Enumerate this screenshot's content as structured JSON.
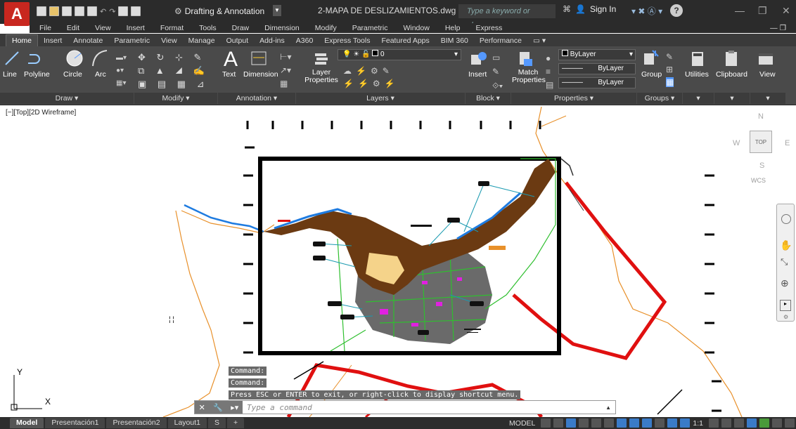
{
  "app": {
    "logo": "A",
    "workspace": "Drafting & Annotation",
    "document_title": "2-MAPA DE DESLIZAMIENTOS.dwg"
  },
  "search": {
    "placeholder": "Type a keyword or phrase"
  },
  "account": {
    "sign_in": "Sign In"
  },
  "help_icon": "?",
  "menu": [
    "File",
    "Edit",
    "View",
    "Insert",
    "Format",
    "Tools",
    "Draw",
    "Dimension",
    "Modify",
    "Parametric",
    "Window",
    "Help",
    "Express"
  ],
  "ribbon_tabs": [
    "Home",
    "Insert",
    "Annotate",
    "Parametric",
    "View",
    "Manage",
    "Output",
    "Add-ins",
    "A360",
    "Express Tools",
    "Featured Apps",
    "BIM 360",
    "Performance"
  ],
  "active_tab": "Home",
  "panels": {
    "draw": {
      "title": "Draw ▾",
      "tools": [
        "Line",
        "Polyline",
        "Circle",
        "Arc"
      ]
    },
    "modify": {
      "title": "Modify ▾"
    },
    "annotation": {
      "title": "Annotation ▾",
      "tools": [
        "Text",
        "Dimension"
      ]
    },
    "layers": {
      "title": "Layers ▾",
      "tool": "Layer Properties",
      "current_layer": "0"
    },
    "block": {
      "title": "Block ▾",
      "tool": "Insert"
    },
    "properties": {
      "title": "Properties ▾",
      "tool": "Match Properties",
      "color": "ByLayer",
      "linetype": "ByLayer",
      "lineweight": "ByLayer"
    },
    "groups": {
      "title": "Groups ▾",
      "tool": "Group"
    },
    "utilities": {
      "label": "Utilities"
    },
    "clipboard": {
      "label": "Clipboard"
    },
    "view": {
      "label": "View"
    }
  },
  "viewport_label": "[−][Top][2D Wireframe]",
  "viewcube": {
    "n": "N",
    "s": "S",
    "e": "E",
    "w": "W",
    "face": "TOP",
    "ucs": "WCS"
  },
  "command_history": [
    "Command:",
    "Command:",
    "Press ESC or ENTER to exit, or right-click to display shortcut menu."
  ],
  "command_placeholder": "Type a command",
  "layout_tabs": [
    "Model",
    "Presentación1",
    "Presentación2",
    "Layout1",
    "S"
  ],
  "status": {
    "model": "MODEL",
    "scale": "1:1"
  },
  "ucs_icon": {
    "x": "X",
    "y": "Y"
  },
  "colors": {
    "titlebar": "#2b2b2b",
    "ribbon": "#4a4a4a",
    "accent_red": "#c8271f",
    "boundary_red": "#e01010",
    "coast_orange": "#e8902a",
    "river_blue": "#1e7be0",
    "landslide_brown": "#6b3a12"
  }
}
